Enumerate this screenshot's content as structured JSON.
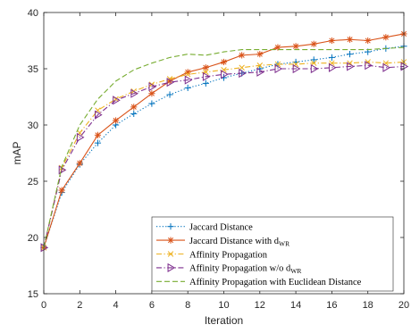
{
  "chart_data": {
    "type": "line",
    "title": "",
    "xlabel": "Iteration",
    "ylabel": "mAP",
    "xlim": [
      0,
      20
    ],
    "ylim": [
      15,
      40
    ],
    "xticks": [
      0,
      2,
      4,
      6,
      8,
      10,
      12,
      14,
      16,
      18,
      20
    ],
    "yticks": [
      15,
      20,
      25,
      30,
      35,
      40
    ],
    "grid": false,
    "legend_position": "bottom-right",
    "x": [
      0,
      1,
      2,
      3,
      4,
      5,
      6,
      7,
      8,
      9,
      10,
      11,
      12,
      13,
      14,
      15,
      16,
      17,
      18,
      19,
      20
    ],
    "series": [
      {
        "name": "Jaccard Distance",
        "name_main": "Jaccard Distance",
        "name_sub": "",
        "color": "#0072BD",
        "dash": "dotted",
        "marker": "plus",
        "values": [
          19.1,
          24.0,
          26.5,
          28.4,
          30.0,
          31.0,
          31.9,
          32.7,
          33.3,
          33.7,
          34.2,
          34.6,
          35.0,
          35.4,
          35.6,
          35.8,
          36.0,
          36.3,
          36.5,
          36.8,
          37.0
        ]
      },
      {
        "name": "Jaccard Distance with d_WR",
        "name_main": "Jaccard Distance with d",
        "name_sub": "WR",
        "color": "#D95319",
        "dash": "solid",
        "marker": "asterisk",
        "values": [
          19.1,
          24.2,
          26.6,
          29.1,
          30.4,
          31.6,
          32.8,
          33.9,
          34.7,
          35.1,
          35.6,
          36.2,
          36.3,
          36.9,
          37.0,
          37.2,
          37.5,
          37.6,
          37.5,
          37.8,
          38.1
        ]
      },
      {
        "name": "Affinity Propagation",
        "name_main": "Affinity Propagation",
        "name_sub": "",
        "color": "#EDB120",
        "dash": "dashdot",
        "marker": "x",
        "values": [
          19.1,
          26.2,
          29.3,
          31.3,
          32.3,
          33.0,
          33.6,
          34.1,
          34.5,
          34.7,
          34.9,
          35.1,
          35.3,
          35.4,
          35.4,
          35.5,
          35.5,
          35.5,
          35.6,
          35.5,
          35.6
        ]
      },
      {
        "name": "Affinity Propagation w/o d_WR",
        "name_main": "Affinity Propagation w/o d",
        "name_sub": "WR",
        "color": "#7E2F8E",
        "dash": "dashdot",
        "marker": "triangle-right",
        "values": [
          19.1,
          26.0,
          28.9,
          30.9,
          32.2,
          32.8,
          33.4,
          33.8,
          34.0,
          34.3,
          34.5,
          34.6,
          34.7,
          35.0,
          35.0,
          35.0,
          35.1,
          35.2,
          35.3,
          35.1,
          35.2
        ]
      },
      {
        "name": "Affinity Propagation with Euclidean Distance",
        "name_main": "Affinity Propagation with Euclidean Distance",
        "name_sub": "",
        "color": "#77AC30",
        "dash": "dashed",
        "marker": "none",
        "values": [
          19.1,
          26.3,
          30.0,
          32.3,
          33.9,
          34.9,
          35.5,
          36.0,
          36.3,
          36.2,
          36.5,
          36.7,
          36.7,
          36.7,
          36.7,
          36.7,
          36.7,
          36.7,
          36.7,
          36.8,
          36.9
        ]
      }
    ]
  }
}
